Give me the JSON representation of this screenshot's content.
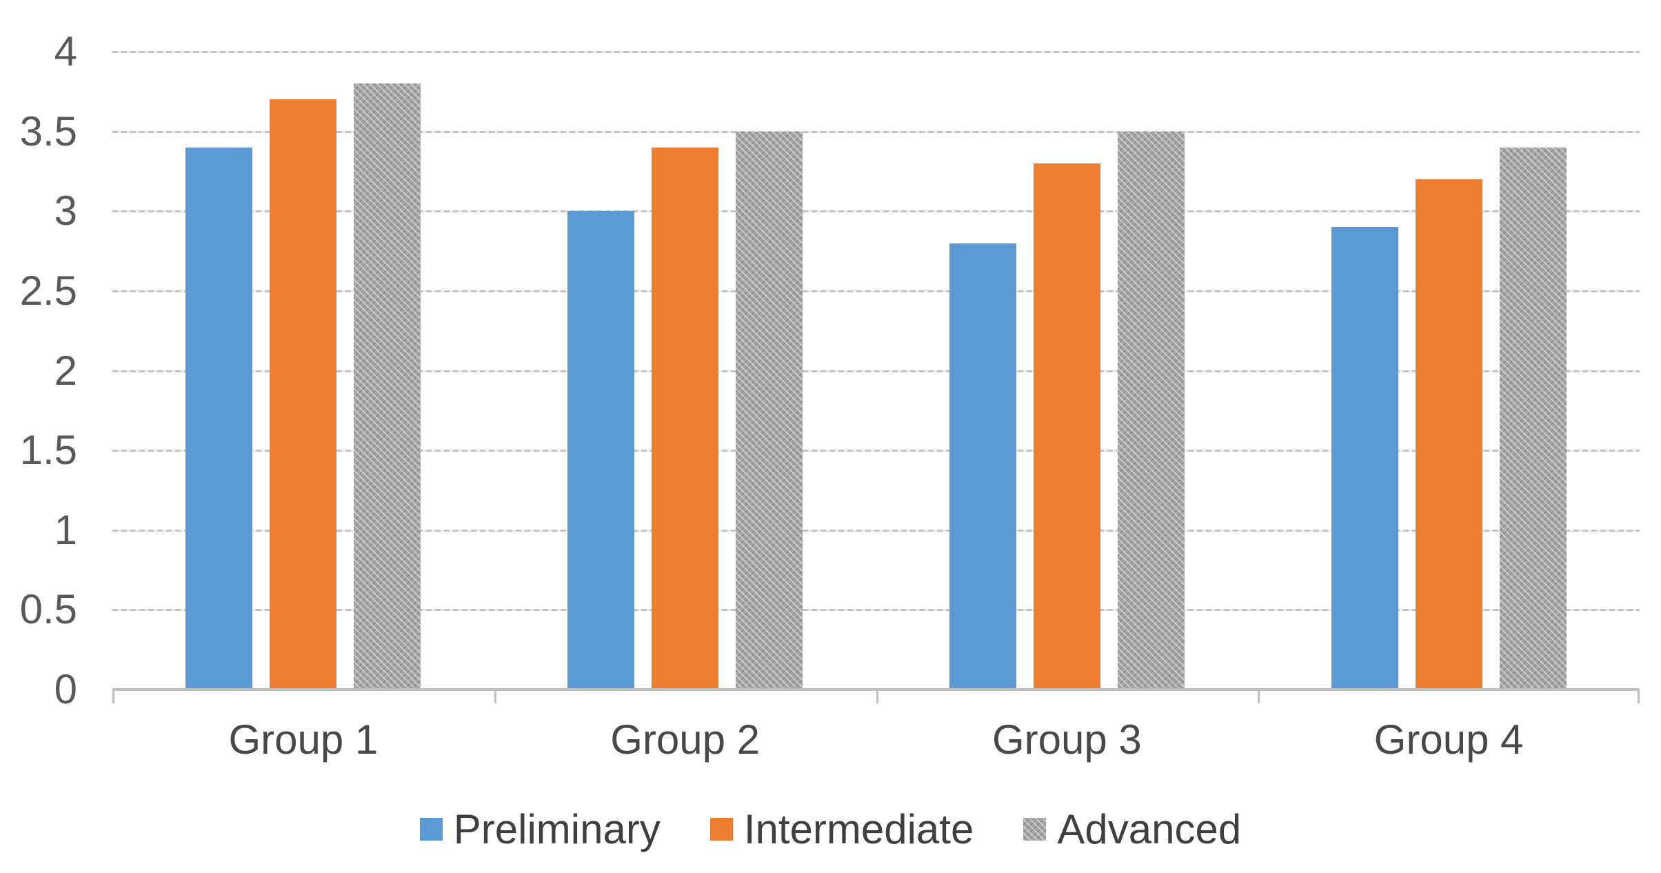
{
  "chart_data": {
    "type": "bar",
    "categories": [
      "Group 1",
      "Group 2",
      "Group 3",
      "Group 4"
    ],
    "series": [
      {
        "name": "Preliminary",
        "color": "#5B9BD5",
        "texture": "solid",
        "values": [
          3.4,
          3.0,
          2.8,
          2.9
        ]
      },
      {
        "name": "Intermediate",
        "color": "#ED7D31",
        "texture": "solid",
        "values": [
          3.7,
          3.4,
          3.3,
          3.2
        ]
      },
      {
        "name": "Advanced",
        "color": "#A5A5A5",
        "texture": "hatched",
        "values": [
          3.8,
          3.5,
          3.5,
          3.4
        ]
      }
    ],
    "ylim": [
      0,
      4
    ],
    "ytick_step": 0.5,
    "yticks": [
      "0",
      "0.5",
      "1",
      "1.5",
      "2",
      "2.5",
      "3",
      "3.5",
      "4"
    ],
    "grid": "horizontal-dashed",
    "legend_position": "bottom",
    "colors": {
      "background": "#FFFFFF",
      "axis_line": "#BFBFBF",
      "gridline": "#C3C3C3",
      "ytick_label_text": "#595959",
      "category_label_text": "#484848",
      "legend_text": "#3F3F3F"
    }
  }
}
